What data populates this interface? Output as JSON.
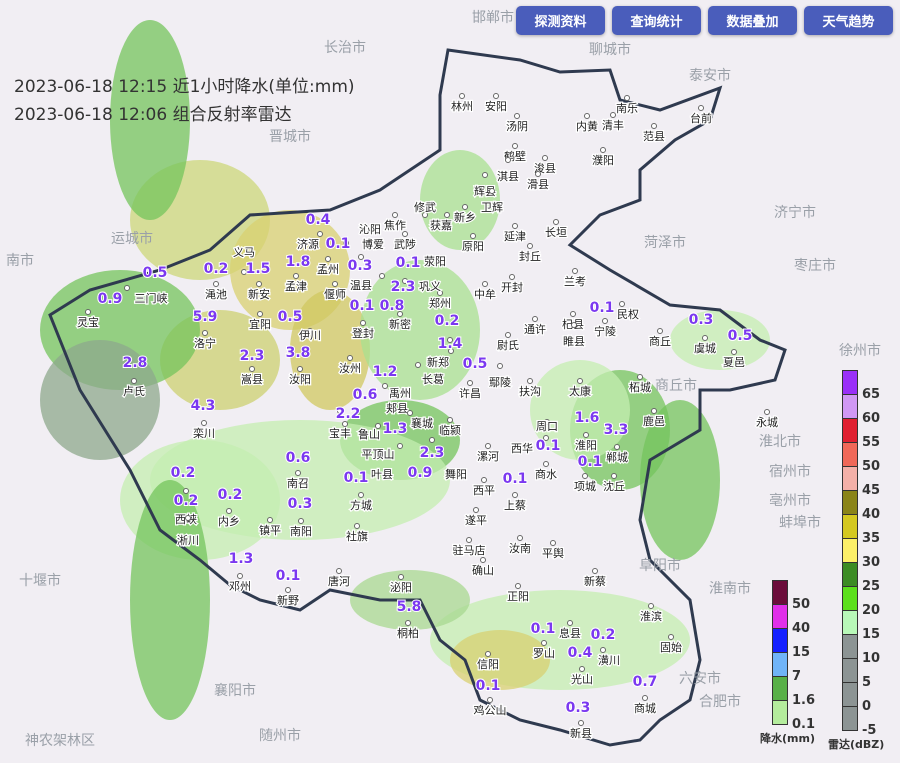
{
  "toolbar": {
    "buttons": [
      "探测资料",
      "查询统计",
      "数据叠加",
      "天气趋势"
    ]
  },
  "header": {
    "line1": "2023-06-18 12:15 近1小时降水(单位:mm)",
    "line2": "2023-06-18 12:06 组合反射率雷达"
  },
  "outside_cities": [
    "邯郸市",
    "聊城市",
    "泰安市",
    "长治市",
    "晋城市",
    "运城市",
    "济宁市",
    "菏泽市",
    "枣庄市",
    "徐州市",
    "商丘市",
    "淮北市",
    "宿州市",
    "亳州市",
    "蚌埠市",
    "阜阳市",
    "淮南市",
    "六安市",
    "合肥市",
    "十堰市",
    "襄阳市",
    "随州市",
    "神农架林区",
    "南市"
  ],
  "cities": [
    "林州",
    "安阳",
    "汤阴",
    "内黄",
    "清丰",
    "南乐",
    "台前",
    "濮阳",
    "范县",
    "鹤壁",
    "淇县",
    "浚县",
    "滑县",
    "辉县",
    "卫辉",
    "新乡",
    "获嘉",
    "延津",
    "长垣",
    "封丘",
    "焦作",
    "修武",
    "武陟",
    "原阳",
    "博爱",
    "济源",
    "孟州",
    "温县",
    "沁阳",
    "开封",
    "兰考",
    "中牟",
    "郑州",
    "荥阳",
    "巩义",
    "偃师",
    "孟津",
    "新安",
    "渑池",
    "三门峡",
    "灵宝",
    "义马",
    "宜阳",
    "洛宁",
    "卢氏",
    "嵩县",
    "伊川",
    "汝阳",
    "栾川",
    "登封",
    "新密",
    "新郑",
    "长葛",
    "尉氏",
    "通许",
    "杞县",
    "民权",
    "睢县",
    "宁陵",
    "商丘",
    "虞城",
    "夏邑",
    "永城",
    "柘城",
    "鹿邑",
    "太康",
    "扶沟",
    "鄢陵",
    "许昌",
    "禹州",
    "郏县",
    "汝州",
    "宝丰",
    "鲁山",
    "平顶山",
    "襄城",
    "临颍",
    "漯河",
    "舞阳",
    "叶县",
    "周口",
    "淮阳",
    "郸城",
    "西华",
    "商水",
    "项城",
    "沈丘",
    "西平",
    "上蔡",
    "遂平",
    "驻马店",
    "确山",
    "汝南",
    "平舆",
    "新蔡",
    "正阳",
    "泌阳",
    "桐柏",
    "唐河",
    "社旗",
    "方城",
    "南召",
    "南阳",
    "镇平",
    "内乡",
    "西峡",
    "淅川",
    "邓州",
    "新野",
    "息县",
    "罗山",
    "光山",
    "潢川",
    "淮滨",
    "固始",
    "商城",
    "信阳",
    "鸡公山",
    "新县"
  ],
  "rainfall_values": [
    "0.4",
    "0.1",
    "0.3",
    "0.1",
    "1.8",
    "1.5",
    "0.2",
    "0.5",
    "0.9",
    "5.9",
    "0.5",
    "0.1",
    "0.8",
    "2.3",
    "0.2",
    "1.4",
    "0.5",
    "2.8",
    "2.3",
    "3.8",
    "4.3",
    "1.2",
    "0.6",
    "2.2",
    "1.3",
    "2.3",
    "0.9",
    "0.6",
    "0.1",
    "0.2",
    "0.2",
    "0.2",
    "0.3",
    "1.3",
    "0.1",
    "5.8",
    "0.1",
    "0.1",
    "0.1",
    "1.6",
    "3.3",
    "0.1",
    "0.3",
    "0.5",
    "0.1",
    "0.2",
    "0.4",
    "0.7",
    "0.1",
    "0.3"
  ],
  "legend_rain": {
    "title": "降水(mm)",
    "labels": [
      "50",
      "40",
      "15",
      "7",
      "1.6",
      "0.1"
    ],
    "colors": [
      "#6b0d3a",
      "#e030e8",
      "#1420ff",
      "#70b4f8",
      "#58b048",
      "#b4ec9c"
    ]
  },
  "legend_radar": {
    "title": "雷达(dBZ)",
    "labels": [
      "65",
      "60",
      "55",
      "50",
      "45",
      "40",
      "35",
      "30",
      "25",
      "20",
      "15",
      "10",
      "5",
      "0",
      "-5"
    ],
    "colors": [
      "#9a30f8",
      "#d098f4",
      "#e02030",
      "#f06858",
      "#f4b0a8",
      "#8a8418",
      "#d4c820",
      "#fcf068",
      "#3c8c24",
      "#5ce01c",
      "#b8f8b8",
      "#8c9494",
      "#8c9494",
      "#8c9494",
      "#8c9494"
    ]
  },
  "colors": {
    "province_border": "#2f3a4f",
    "rain_label": "#7b38f0",
    "button": "#4a5dbb"
  }
}
